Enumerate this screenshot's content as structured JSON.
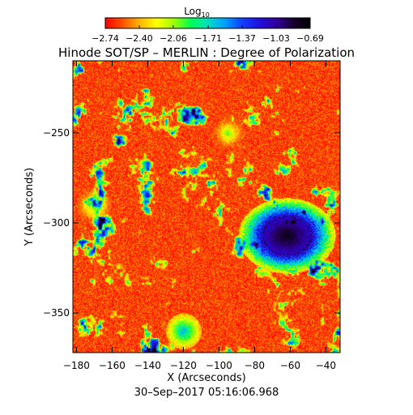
{
  "chart_data": {
    "type": "heatmap",
    "title": "Hinode SOT/SP – MERLIN : Degree of Polarization",
    "subtitle": "30–Sep–2017 05:16:06.968",
    "xlabel": "X (Arcseconds)",
    "ylabel": "Y (Arcseconds)",
    "xlim": [
      -182,
      -32
    ],
    "ylim": [
      -372,
      -210
    ],
    "x_ticks": [
      -180,
      -160,
      -140,
      -120,
      -100,
      -80,
      -60,
      -40
    ],
    "y_ticks": [
      -250,
      -300,
      -350
    ],
    "x_tick_labels": [
      "−180",
      "−160",
      "−140",
      "−120",
      "−100",
      "−80",
      "−60",
      "−40"
    ],
    "y_tick_labels": [
      "−250",
      "−300",
      "−350"
    ],
    "grid": false,
    "colorbar": {
      "label_base": "Log",
      "label_sub": "10",
      "range": [
        -2.74,
        -0.69
      ],
      "tick_values": [
        -2.74,
        -2.4,
        -2.06,
        -1.71,
        -1.37,
        -1.03,
        -0.69
      ],
      "tick_labels": [
        "−2.74",
        "−2.40",
        "−2.06",
        "−1.71",
        "−1.37",
        "−1.03",
        "−0.69"
      ],
      "colors": [
        "#ff0000",
        "#ff5000",
        "#ffb400",
        "#ffff00",
        "#a0ff00",
        "#00ff50",
        "#00e0c0",
        "#00a0ff",
        "#1040ff",
        "#2010e0",
        "#3000a0",
        "#180030",
        "#000000"
      ]
    },
    "background_value": -2.6,
    "features": [
      {
        "kind": "sunspot",
        "x": -62,
        "y": -307,
        "rx": 13,
        "ry": 10,
        "value": -0.69
      },
      {
        "kind": "network",
        "x": -120,
        "y": -360,
        "value": -1.6
      },
      {
        "kind": "network",
        "x": -170,
        "y": -290,
        "value": -1.9
      },
      {
        "kind": "network",
        "x": -95,
        "y": -250,
        "value": -2.0
      }
    ]
  }
}
